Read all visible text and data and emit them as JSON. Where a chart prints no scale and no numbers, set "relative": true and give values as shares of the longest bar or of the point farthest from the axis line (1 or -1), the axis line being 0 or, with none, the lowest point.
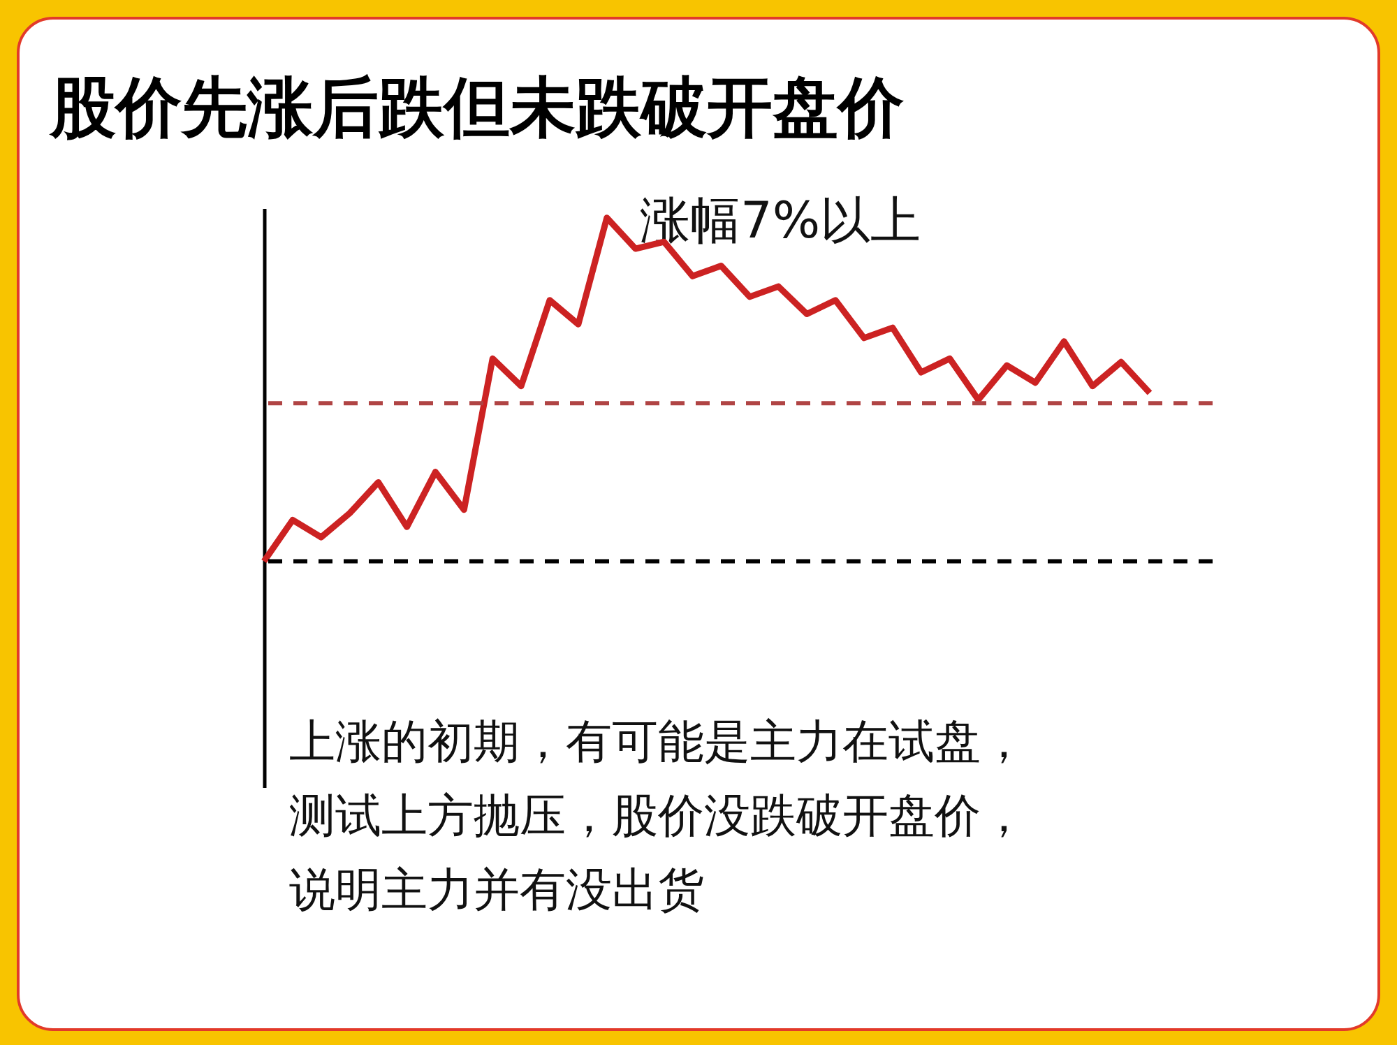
{
  "chart_data": {
    "type": "line",
    "title": "股价先涨后跌但未跌破开盘价",
    "relative": true,
    "categories": [
      null,
      null,
      null,
      null,
      null,
      null,
      null,
      null,
      null,
      null,
      null,
      null,
      null,
      null,
      null,
      null,
      null,
      null,
      null,
      null,
      null,
      null,
      null,
      null,
      null,
      null,
      null,
      null,
      null,
      null,
      null,
      null
    ],
    "series": [
      {
        "color": "#cc2222",
        "values": [
          0,
          0.12,
          0.07,
          0.14,
          0.23,
          0.1,
          0.26,
          0.15,
          0.59,
          0.51,
          0.76,
          0.69,
          1,
          0.91,
          0.93,
          0.83,
          0.86,
          0.77,
          0.8,
          0.72,
          0.76,
          0.65,
          0.68,
          0.55,
          0.59,
          0.47,
          0.57,
          0.52,
          0.64,
          0.51,
          0.58,
          0.49
        ]
      }
    ],
    "ref_lines": [
      {
        "axis": "y",
        "value": 0,
        "color": "#000000",
        "line_style": "dashed"
      },
      {
        "axis": "y",
        "value": 0.46,
        "color": "#b04444",
        "line_style": "dashed"
      }
    ],
    "annotations": [
      "涨幅7%以上",
      "上涨的初期，有可能是主力在试盘，测试上方抛压，股价没跌破开盘价，说明主力并有没出货"
    ]
  }
}
